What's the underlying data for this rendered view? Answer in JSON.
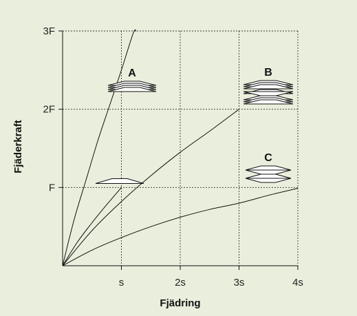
{
  "chart_data": {
    "type": "line",
    "xlabel": "Fjädring",
    "ylabel": "Fjäderkraft",
    "x_ticks": [
      {
        "value": 1,
        "label": "s"
      },
      {
        "value": 2,
        "label": "2s"
      },
      {
        "value": 3,
        "label": "3s"
      },
      {
        "value": 4,
        "label": "4s"
      }
    ],
    "y_ticks": [
      {
        "value": 1,
        "label": "F"
      },
      {
        "value": 2,
        "label": "2F"
      },
      {
        "value": 3,
        "label": "3F"
      }
    ],
    "xlim": [
      0,
      4
    ],
    "ylim": [
      0,
      3
    ],
    "grid": true,
    "series": [
      {
        "points": [
          [
            0,
            0
          ],
          [
            0.2,
            0.6
          ],
          [
            0.4,
            1.1
          ],
          [
            0.6,
            1.6
          ],
          [
            0.8,
            2.05
          ],
          [
            1.0,
            2.5
          ],
          [
            1.2,
            2.97
          ],
          [
            1.25,
            3.0
          ]
        ]
      },
      {
        "points": [
          [
            0,
            0
          ],
          [
            0.25,
            0.3
          ],
          [
            0.5,
            0.55
          ],
          [
            0.75,
            0.78
          ],
          [
            1.0,
            1.0
          ]
        ]
      },
      {
        "points": [
          [
            0,
            0
          ],
          [
            0.5,
            0.45
          ],
          [
            1.0,
            0.82
          ],
          [
            1.5,
            1.15
          ],
          [
            2.0,
            1.45
          ],
          [
            2.5,
            1.72
          ],
          [
            3.0,
            2.0
          ]
        ]
      },
      {
        "points": [
          [
            0,
            0
          ],
          [
            0.5,
            0.2
          ],
          [
            1.0,
            0.36
          ],
          [
            1.5,
            0.5
          ],
          [
            2.0,
            0.62
          ],
          [
            2.5,
            0.72
          ],
          [
            3.0,
            0.8
          ],
          [
            3.5,
            0.9
          ],
          [
            4.0,
            0.99
          ]
        ]
      }
    ],
    "annotations": [
      {
        "label": "A"
      },
      {
        "label": "B"
      },
      {
        "label": "C"
      }
    ],
    "colors": {
      "background": "#e9efdc",
      "line": "#111111",
      "spring_outline": "#111111",
      "spring_fill": "#ffffff"
    }
  }
}
